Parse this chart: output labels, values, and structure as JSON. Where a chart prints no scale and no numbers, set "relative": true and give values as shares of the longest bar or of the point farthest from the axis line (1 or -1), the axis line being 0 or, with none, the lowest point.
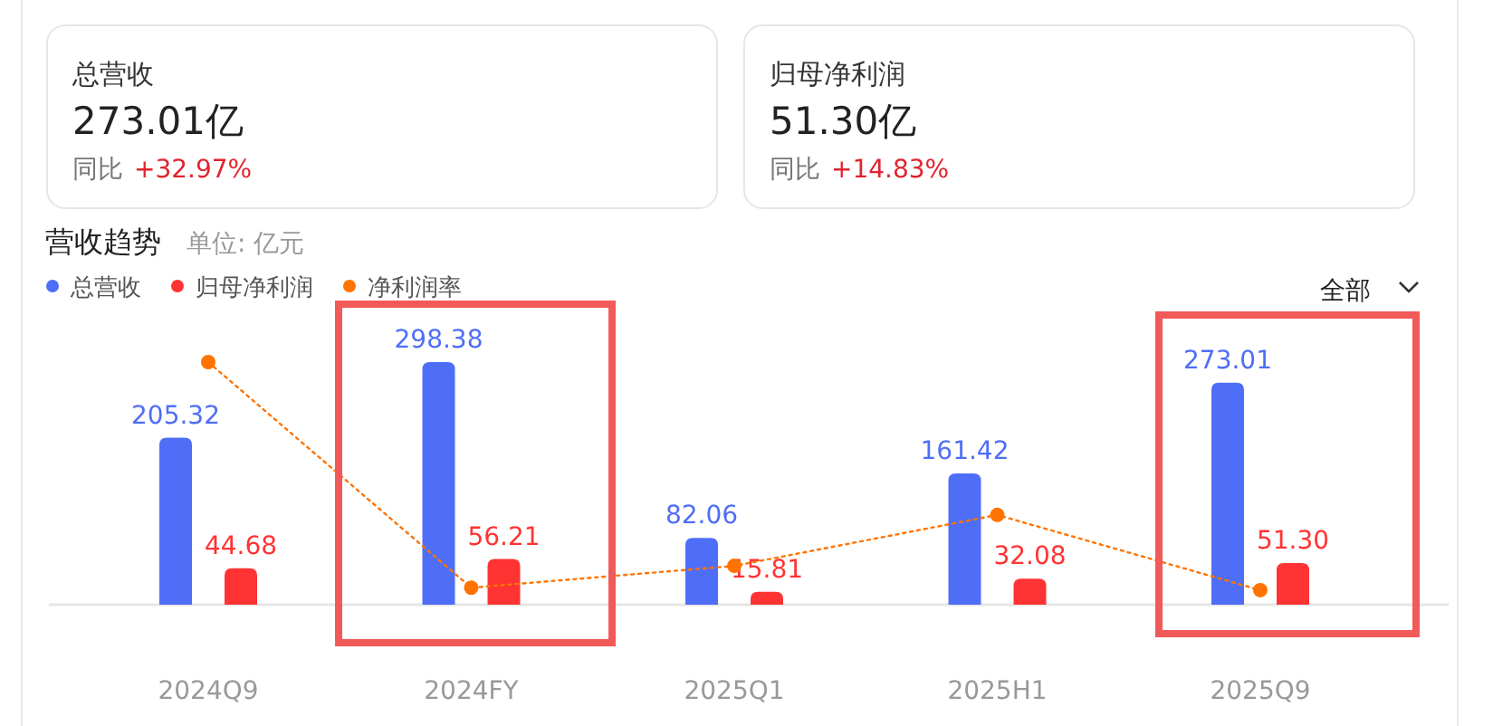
{
  "chart_data": [
    {
      "type": "other",
      "title": "总营收",
      "annotations": [
        "273.01亿",
        "同比",
        "+32.97%"
      ]
    },
    {
      "type": "other",
      "title": "归母净利润",
      "annotations": [
        "51.30亿",
        "同比",
        "+14.83%"
      ]
    },
    {
      "type": "bar",
      "title": "营收趋势",
      "subtitle": "单位: 亿元",
      "annotations": [
        "全部"
      ],
      "categories": [
        "2024Q9",
        "2024FY",
        "2025Q1",
        "2025H1",
        "2025Q9"
      ],
      "legend": "top left",
      "series": [
        {
          "name": "总营收",
          "color": "#4f6ef7",
          "values": [
            205.32,
            298.38,
            82.06,
            161.42,
            273.01
          ],
          "value_labels": [
            "205.32",
            "298.38",
            "82.06",
            "161.42",
            "273.01"
          ]
        },
        {
          "name": "归母净利润",
          "color": "#ff3333",
          "values": [
            44.68,
            56.21,
            15.81,
            32.08,
            51.3
          ],
          "value_labels": [
            "44.68",
            "56.21",
            "15.81",
            "32.08",
            "51.30"
          ]
        }
      ]
    },
    {
      "type": "line",
      "relative": true,
      "legend": "top left",
      "marker": "circle",
      "line_style": "dotted",
      "categories": [
        null,
        null,
        null,
        null,
        null
      ],
      "series": [
        {
          "name": "净利润率",
          "color": "#ff7300",
          "values": [
            1,
            0.07,
            0.16,
            0.37,
            0.06
          ]
        }
      ]
    }
  ]
}
